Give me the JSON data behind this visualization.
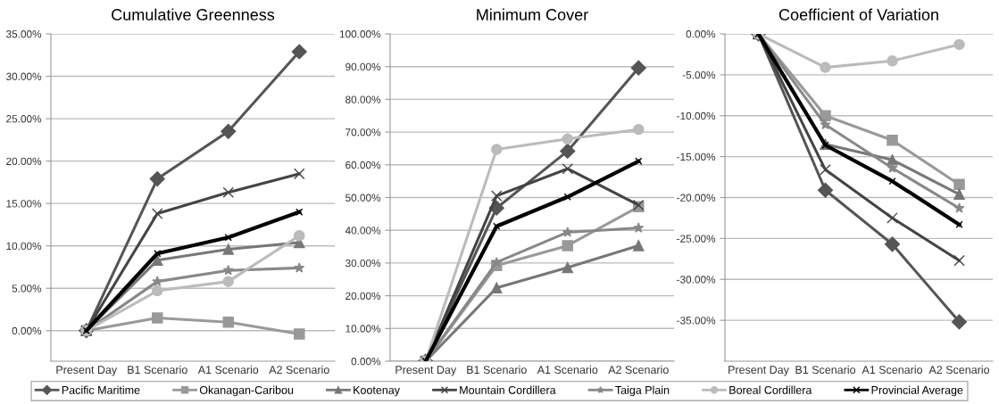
{
  "chart_data": [
    {
      "type": "line",
      "title": "Cumulative Greenness",
      "categories": [
        "Present Day",
        "B1 Scenario",
        "A1 Scenario",
        "A2 Scenario"
      ],
      "ylim": [
        -3.6,
        35
      ],
      "yticks": [
        {
          "value": 0,
          "label": "0.00%"
        },
        {
          "value": 5,
          "label": "5.00%"
        },
        {
          "value": 10,
          "label": "10.00%"
        },
        {
          "value": 15,
          "label": "15.00%"
        },
        {
          "value": 20,
          "label": "20.00%"
        },
        {
          "value": 25,
          "label": "25.00%"
        },
        {
          "value": 30,
          "label": "30.00%"
        },
        {
          "value": 35,
          "label": "35.00%"
        }
      ],
      "grid": "y",
      "legend": "bottom",
      "series": [
        {
          "name": "Pacific Maritime",
          "color": "#555555",
          "marker": "diamond",
          "values": [
            0,
            17.9,
            23.5,
            32.9
          ]
        },
        {
          "name": "Okanagan-Caribou",
          "color": "#999999",
          "marker": "square",
          "values": [
            0,
            1.5,
            1.0,
            -0.4
          ]
        },
        {
          "name": "Kootenay",
          "color": "#777777",
          "marker": "triangle",
          "values": [
            0,
            8.3,
            9.6,
            10.4
          ]
        },
        {
          "name": "Mountain Cordillera",
          "color": "#444444",
          "marker": "cross",
          "values": [
            0,
            13.8,
            16.3,
            18.5
          ]
        },
        {
          "name": "Taiga Plain",
          "color": "#888888",
          "marker": "star",
          "values": [
            0,
            5.8,
            7.1,
            7.4
          ]
        },
        {
          "name": "Boreal Cordillera",
          "color": "#bbbbbb",
          "marker": "circle",
          "values": [
            0,
            4.7,
            5.8,
            11.2
          ]
        },
        {
          "name": "Provincial Average",
          "color": "#000000",
          "marker": "cross",
          "values": [
            0,
            9.1,
            11.0,
            14.0
          ]
        }
      ]
    },
    {
      "type": "line",
      "title": "Minimum Cover",
      "categories": [
        "Present Day",
        "B1 Scenario",
        "A1 Scenario",
        "A2 Scenario"
      ],
      "ylim": [
        0,
        100
      ],
      "yticks": [
        {
          "value": 0,
          "label": "0.00%"
        },
        {
          "value": 10,
          "label": "10.00%"
        },
        {
          "value": 20,
          "label": "20.00%"
        },
        {
          "value": 30,
          "label": "30.00%"
        },
        {
          "value": 40,
          "label": "40.00%"
        },
        {
          "value": 50,
          "label": "50.00%"
        },
        {
          "value": 60,
          "label": "60.00%"
        },
        {
          "value": 70,
          "label": "70.00%"
        },
        {
          "value": 80,
          "label": "80.00%"
        },
        {
          "value": 90,
          "label": "90.00%"
        },
        {
          "value": 100,
          "label": "100.00%"
        }
      ],
      "grid": "y",
      "series": [
        {
          "color": "#555555",
          "marker": "diamond",
          "values": [
            0,
            46.8,
            64.2,
            89.6
          ]
        },
        {
          "color": "#999999",
          "marker": "square",
          "values": [
            0,
            29.2,
            35.3,
            47.2
          ]
        },
        {
          "color": "#777777",
          "marker": "triangle",
          "values": [
            0,
            22.4,
            28.6,
            35.3
          ]
        },
        {
          "color": "#444444",
          "marker": "cross",
          "values": [
            0,
            50.5,
            58.8,
            47.7
          ]
        },
        {
          "color": "#888888",
          "marker": "star",
          "values": [
            0,
            30.2,
            39.4,
            40.7
          ]
        },
        {
          "color": "#bbbbbb",
          "marker": "circle",
          "values": [
            0,
            64.7,
            67.9,
            70.8
          ]
        },
        {
          "color": "#000000",
          "marker": "cross",
          "values": [
            0,
            41.2,
            50.2,
            61.1
          ]
        }
      ]
    },
    {
      "type": "line",
      "title": "Coefficient of Variation",
      "categories": [
        "Present Day",
        "B1 Scenario",
        "A1 Scenario",
        "A2 Scenario"
      ],
      "ylim": [
        -40,
        0
      ],
      "yticks": [
        {
          "value": -35,
          "label": "-35.00%"
        },
        {
          "value": -30,
          "label": "-30.00%"
        },
        {
          "value": -25,
          "label": "-25.00%"
        },
        {
          "value": -20,
          "label": "-20.00%"
        },
        {
          "value": -15,
          "label": "-15.00%"
        },
        {
          "value": -10,
          "label": "-10.00%"
        },
        {
          "value": -5,
          "label": "-5.00%"
        },
        {
          "value": 0,
          "label": "0.00%"
        }
      ],
      "grid": "y",
      "series": [
        {
          "color": "#555555",
          "marker": "diamond",
          "values": [
            0,
            -19.1,
            -25.7,
            -35.2
          ]
        },
        {
          "color": "#999999",
          "marker": "square",
          "values": [
            0,
            -10.0,
            -13.0,
            -18.4
          ]
        },
        {
          "color": "#777777",
          "marker": "triangle",
          "values": [
            0,
            -13.5,
            -15.4,
            -19.6
          ]
        },
        {
          "color": "#444444",
          "marker": "cross",
          "values": [
            0,
            -16.6,
            -22.5,
            -27.7
          ]
        },
        {
          "color": "#888888",
          "marker": "star",
          "values": [
            0,
            -11.1,
            -16.4,
            -21.3
          ]
        },
        {
          "color": "#bbbbbb",
          "marker": "circle",
          "values": [
            0,
            -4.1,
            -3.3,
            -1.3
          ]
        },
        {
          "color": "#000000",
          "marker": "cross",
          "values": [
            0,
            -13.6,
            -18.0,
            -23.3
          ]
        }
      ]
    }
  ]
}
